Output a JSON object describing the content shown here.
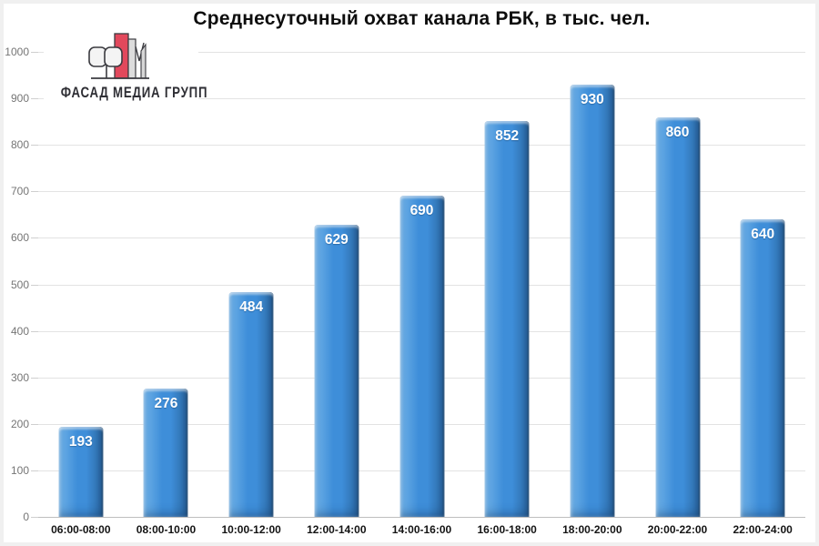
{
  "logo": {
    "text": "ФАСАД МЕДИА ГРУПП",
    "mark_red": "#E2485C",
    "mark_gray": "#DCDCDC",
    "mark_outline": "#3B3B40"
  },
  "chart_data": {
    "type": "bar",
    "title": "Среднесуточный охват канала РБК, в тыс. чел.",
    "categories": [
      "06:00-08:00",
      "08:00-10:00",
      "10:00-12:00",
      "12:00-14:00",
      "14:00-16:00",
      "16:00-18:00",
      "18:00-20:00",
      "20:00-22:00",
      "22:00-24:00"
    ],
    "values": [
      193,
      276,
      484,
      629,
      690,
      852,
      930,
      860,
      640
    ],
    "xlabel": "",
    "ylabel": "",
    "ylim": [
      0,
      1000
    ],
    "yticks": [
      0,
      100,
      200,
      300,
      400,
      500,
      600,
      700,
      800,
      900,
      1000
    ],
    "grid": true,
    "legend_position": "none",
    "value_labels": "inside-top",
    "colors": {
      "bar_light": "#6FB1E7",
      "bar_mid": "#3E8ED9",
      "bar_dark": "#2A66A0",
      "value_label": "#FFFFFF",
      "axis_tick_label": "#757575",
      "category_label": "#141414",
      "gridline": "#E3E3E3",
      "baseline": "#BFBFBF"
    }
  }
}
